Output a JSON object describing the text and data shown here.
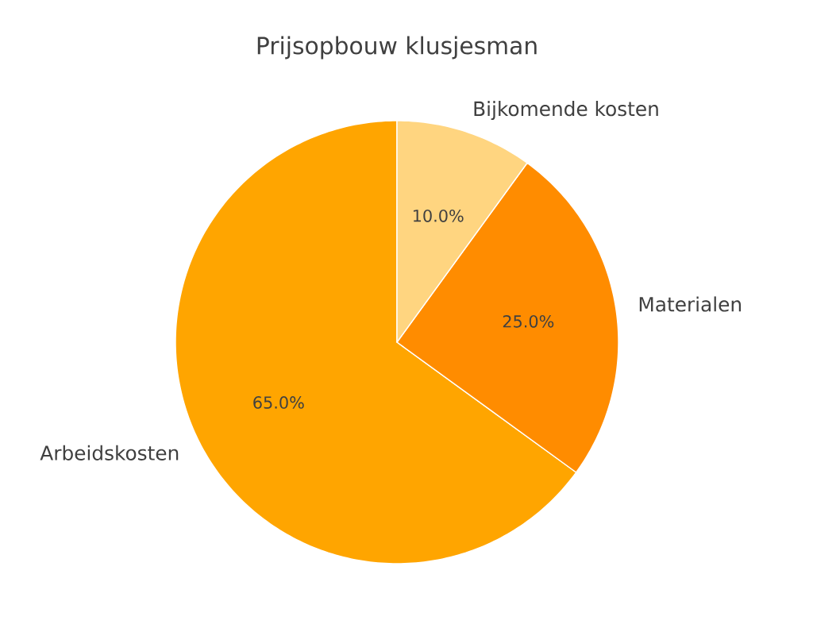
{
  "chart_data": {
    "type": "pie",
    "title": "Prijsopbouw klusjesman",
    "categories": [
      "Arbeidskosten",
      "Materialen",
      "Bijkomende kosten"
    ],
    "values": [
      65,
      25,
      10
    ],
    "colors": [
      "#ffa500",
      "#ff8c00",
      "#ffd580"
    ],
    "value_labels": [
      "65.0%",
      "25.0%",
      "10.0%"
    ]
  }
}
